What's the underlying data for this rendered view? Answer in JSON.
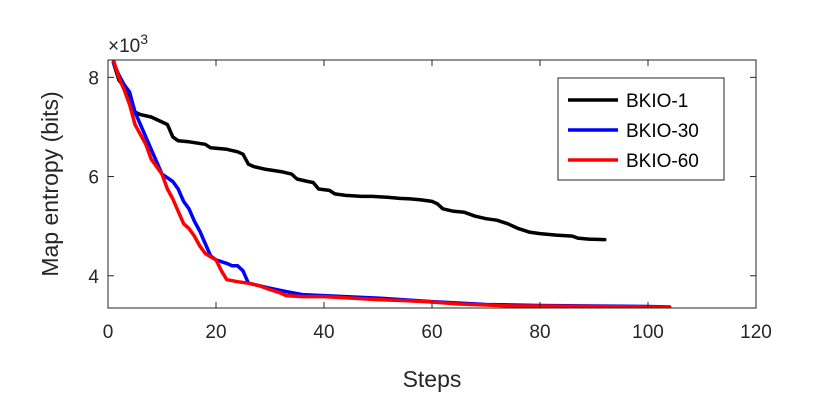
{
  "chart_data": {
    "type": "line",
    "xlabel": "Steps",
    "ylabel": "Map entropy (bits)",
    "y_exponent_label": "×10",
    "y_exponent_power": "3",
    "xlim": [
      0,
      120
    ],
    "ylim": [
      3.35,
      8.35
    ],
    "xticks": [
      0,
      20,
      40,
      60,
      80,
      100,
      120
    ],
    "yticks": [
      4,
      6,
      8
    ],
    "grid": false,
    "legend_position": "top-right",
    "series": [
      {
        "name": "BKIO-1",
        "color": "#000000",
        "points": [
          [
            1,
            8.3
          ],
          [
            2,
            7.95
          ],
          [
            3,
            7.8
          ],
          [
            4,
            7.65
          ],
          [
            5,
            7.3
          ],
          [
            6,
            7.25
          ],
          [
            8,
            7.2
          ],
          [
            9,
            7.15
          ],
          [
            10,
            7.1
          ],
          [
            11,
            7.05
          ],
          [
            12,
            6.8
          ],
          [
            13,
            6.72
          ],
          [
            15,
            6.7
          ],
          [
            18,
            6.65
          ],
          [
            19,
            6.58
          ],
          [
            22,
            6.55
          ],
          [
            24,
            6.5
          ],
          [
            25,
            6.45
          ],
          [
            26,
            6.25
          ],
          [
            27,
            6.2
          ],
          [
            29,
            6.15
          ],
          [
            32,
            6.1
          ],
          [
            34,
            6.05
          ],
          [
            35,
            5.95
          ],
          [
            37,
            5.9
          ],
          [
            38,
            5.88
          ],
          [
            39,
            5.75
          ],
          [
            41,
            5.72
          ],
          [
            42,
            5.65
          ],
          [
            44,
            5.62
          ],
          [
            47,
            5.6
          ],
          [
            49,
            5.6
          ],
          [
            52,
            5.58
          ],
          [
            54,
            5.56
          ],
          [
            56,
            5.55
          ],
          [
            58,
            5.53
          ],
          [
            60,
            5.5
          ],
          [
            61,
            5.45
          ],
          [
            62,
            5.35
          ],
          [
            64,
            5.3
          ],
          [
            66,
            5.28
          ],
          [
            68,
            5.2
          ],
          [
            70,
            5.15
          ],
          [
            72,
            5.12
          ],
          [
            74,
            5.05
          ],
          [
            76,
            4.95
          ],
          [
            78,
            4.88
          ],
          [
            80,
            4.85
          ],
          [
            83,
            4.82
          ],
          [
            86,
            4.8
          ],
          [
            87,
            4.76
          ],
          [
            89,
            4.74
          ],
          [
            92,
            4.73
          ]
        ]
      },
      {
        "name": "BKIO-30",
        "color": "#0000ff",
        "points": [
          [
            1,
            8.3
          ],
          [
            2,
            8.05
          ],
          [
            3,
            7.85
          ],
          [
            4,
            7.7
          ],
          [
            5,
            7.3
          ],
          [
            7,
            6.8
          ],
          [
            9,
            6.3
          ],
          [
            10,
            6.05
          ],
          [
            12,
            5.9
          ],
          [
            13,
            5.75
          ],
          [
            14,
            5.5
          ],
          [
            15,
            5.35
          ],
          [
            16,
            5.1
          ],
          [
            17,
            4.9
          ],
          [
            18,
            4.65
          ],
          [
            19,
            4.4
          ],
          [
            20,
            4.32
          ],
          [
            22,
            4.25
          ],
          [
            23,
            4.2
          ],
          [
            24,
            4.2
          ],
          [
            25,
            4.1
          ],
          [
            26,
            3.85
          ],
          [
            28,
            3.8
          ],
          [
            30,
            3.75
          ],
          [
            33,
            3.68
          ],
          [
            36,
            3.62
          ],
          [
            40,
            3.6
          ],
          [
            50,
            3.55
          ],
          [
            60,
            3.48
          ],
          [
            70,
            3.42
          ],
          [
            80,
            3.4
          ],
          [
            90,
            3.39
          ],
          [
            100,
            3.38
          ],
          [
            104,
            3.37
          ]
        ]
      },
      {
        "name": "BKIO-60",
        "color": "#ff0000",
        "points": [
          [
            1,
            8.35
          ],
          [
            2,
            8.0
          ],
          [
            3,
            7.75
          ],
          [
            4,
            7.45
          ],
          [
            5,
            7.05
          ],
          [
            6,
            6.85
          ],
          [
            7,
            6.65
          ],
          [
            8,
            6.35
          ],
          [
            9,
            6.2
          ],
          [
            10,
            6.05
          ],
          [
            11,
            5.75
          ],
          [
            12,
            5.55
          ],
          [
            13,
            5.3
          ],
          [
            14,
            5.05
          ],
          [
            15,
            4.95
          ],
          [
            16,
            4.8
          ],
          [
            17,
            4.6
          ],
          [
            18,
            4.45
          ],
          [
            19,
            4.38
          ],
          [
            20,
            4.32
          ],
          [
            21,
            4.1
          ],
          [
            22,
            3.92
          ],
          [
            24,
            3.88
          ],
          [
            26,
            3.85
          ],
          [
            28,
            3.8
          ],
          [
            30,
            3.72
          ],
          [
            32,
            3.65
          ],
          [
            33,
            3.6
          ],
          [
            36,
            3.58
          ],
          [
            40,
            3.58
          ],
          [
            45,
            3.55
          ],
          [
            50,
            3.52
          ],
          [
            55,
            3.5
          ],
          [
            60,
            3.47
          ],
          [
            65,
            3.43
          ],
          [
            70,
            3.41
          ],
          [
            75,
            3.39
          ],
          [
            80,
            3.39
          ],
          [
            90,
            3.38
          ],
          [
            100,
            3.37
          ],
          [
            104,
            3.36
          ]
        ]
      }
    ]
  }
}
